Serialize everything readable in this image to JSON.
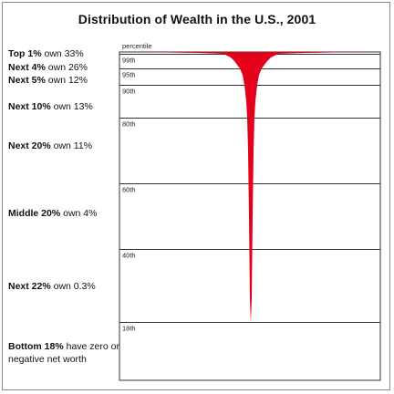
{
  "chart_data": {
    "type": "area",
    "title": "Distribution of Wealth in the U.S., 2001",
    "axis_label": "percentile",
    "ylim": [
      0,
      100
    ],
    "gridlines": [
      99,
      95,
      90,
      80,
      60,
      40,
      18
    ],
    "tick_labels": [
      "99th",
      "95th",
      "90th",
      "80th",
      "60th",
      "40th",
      "18th"
    ],
    "groups": [
      {
        "bold": "Top 1%",
        "rest": " own 33%",
        "from_percentile": 99,
        "to_percentile": 100,
        "share": 33
      },
      {
        "bold": "Next 4%",
        "rest": " own 26%",
        "from_percentile": 95,
        "to_percentile": 99,
        "share": 26
      },
      {
        "bold": "Next 5%",
        "rest": " own 12%",
        "from_percentile": 90,
        "to_percentile": 95,
        "share": 12
      },
      {
        "bold": "Next 10%",
        "rest": " own 13%",
        "from_percentile": 80,
        "to_percentile": 90,
        "share": 13
      },
      {
        "bold": "Next 20%",
        "rest": " own 11%",
        "from_percentile": 60,
        "to_percentile": 80,
        "share": 11
      },
      {
        "bold": "Middle 20%",
        "rest": " own 4%",
        "from_percentile": 40,
        "to_percentile": 60,
        "share": 4
      },
      {
        "bold": "Next 22%",
        "rest": " own 0.3%",
        "from_percentile": 18,
        "to_percentile": 40,
        "share": 0.3
      },
      {
        "bold": "Bottom 18%",
        "rest": " have zero or negative net worth",
        "from_percentile": 0,
        "to_percentile": 18,
        "share": 0
      }
    ],
    "fill_color": "#e3001b"
  }
}
